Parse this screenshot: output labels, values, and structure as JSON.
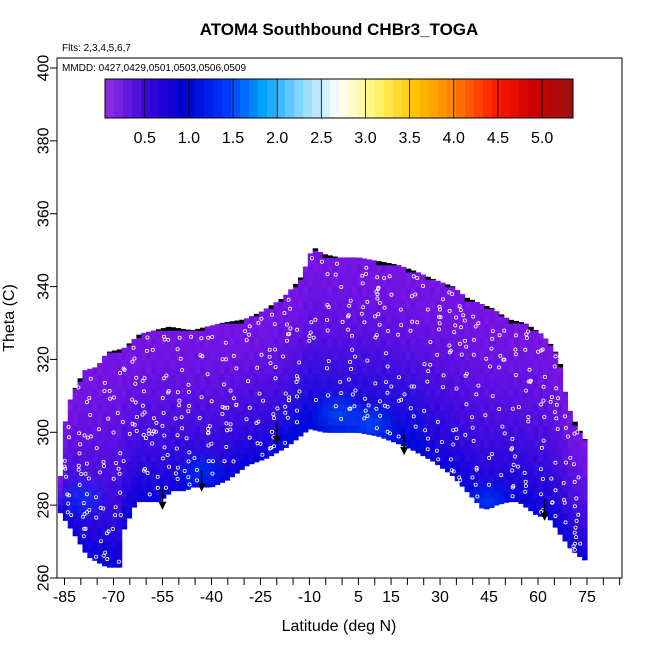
{
  "chart_data": {
    "type": "heatmap",
    "title": "ATOM4 Southbound CHBr3_TOGA",
    "flights_note": "Flts: 2,3,4,5,6,7",
    "dates_note": "MMDD: 0427,0429,0501,0503,0506,0509",
    "xlabel": "Latitude (deg N)",
    "ylabel": "Theta (C)",
    "xlim": [
      -88,
      87
    ],
    "ylim": [
      260,
      405
    ],
    "x_ticks": [
      -85,
      -70,
      -55,
      -40,
      -25,
      -10,
      5,
      15,
      30,
      45,
      60,
      75
    ],
    "x_minor_ticks": [
      -80,
      -75,
      -65,
      -60,
      -50,
      -45,
      -35,
      -30,
      -20,
      -15,
      -5,
      0,
      10,
      20,
      25,
      35,
      40,
      50,
      55,
      65,
      70,
      80,
      85
    ],
    "y_ticks": [
      260,
      280,
      300,
      320,
      340,
      360,
      380,
      400
    ],
    "colorbar": {
      "min": 0.05,
      "max": 5.35,
      "ticks": [
        0.5,
        1.0,
        1.5,
        2.0,
        2.5,
        3.0,
        3.5,
        4.0,
        4.5,
        5.0
      ],
      "tick_labels": [
        "0.5",
        "1.0",
        "1.5",
        "2.0",
        "2.5",
        "3.0",
        "3.5",
        "4.0",
        "4.5",
        "5.0"
      ],
      "colors": [
        "#8a2be2",
        "#3a05dc",
        "#0000cd",
        "#0033ff",
        "#00a0ff",
        "#88d8ff",
        "#ffffff",
        "#fff46a",
        "#ffc400",
        "#ff8000",
        "#ff2000",
        "#d00000",
        "#a01010"
      ]
    },
    "upper_boundary": [
      [
        -87,
        279
      ],
      [
        -86,
        291
      ],
      [
        -85,
        302
      ],
      [
        -83,
        310
      ],
      [
        -79,
        317
      ],
      [
        -75,
        318
      ],
      [
        -72,
        322
      ],
      [
        -67,
        323
      ],
      [
        -62,
        327
      ],
      [
        -53,
        329
      ],
      [
        -46,
        328
      ],
      [
        -37,
        330
      ],
      [
        -30,
        331
      ],
      [
        -25,
        333
      ],
      [
        -18,
        337
      ],
      [
        -13,
        342
      ],
      [
        -11,
        346
      ],
      [
        -9,
        351
      ],
      [
        -6,
        349
      ],
      [
        -1,
        348
      ],
      [
        5,
        348
      ],
      [
        11,
        347
      ],
      [
        17,
        346
      ],
      [
        23,
        344
      ],
      [
        28,
        342
      ],
      [
        34,
        340
      ],
      [
        38,
        337
      ],
      [
        46,
        334
      ],
      [
        51,
        331
      ],
      [
        56,
        330
      ],
      [
        61,
        327
      ],
      [
        64,
        324
      ],
      [
        66,
        321
      ],
      [
        67,
        318
      ],
      [
        68,
        312
      ],
      [
        70,
        305
      ],
      [
        73,
        300
      ],
      [
        75,
        297
      ],
      [
        75,
        280
      ],
      [
        74,
        265
      ]
    ],
    "lower_boundary": [
      [
        -87,
        279
      ],
      [
        -82,
        272
      ],
      [
        -78,
        266
      ],
      [
        -72,
        263
      ],
      [
        -68,
        263
      ],
      [
        -67,
        273
      ],
      [
        -63,
        281
      ],
      [
        -56,
        281
      ],
      [
        -52,
        284
      ],
      [
        -48,
        284
      ],
      [
        -46,
        285
      ],
      [
        -40,
        285
      ],
      [
        -35,
        287
      ],
      [
        -29,
        291
      ],
      [
        -23,
        293
      ],
      [
        -17,
        296
      ],
      [
        -10,
        301
      ],
      [
        -5,
        300
      ],
      [
        0,
        300
      ],
      [
        5,
        300
      ],
      [
        11,
        299
      ],
      [
        17,
        297
      ],
      [
        22,
        295
      ],
      [
        28,
        292
      ],
      [
        34,
        288
      ],
      [
        38,
        284
      ],
      [
        41,
        281
      ],
      [
        43,
        279
      ],
      [
        45,
        279
      ],
      [
        47,
        280
      ],
      [
        51,
        281
      ],
      [
        54,
        281
      ],
      [
        57,
        279
      ],
      [
        60,
        277
      ],
      [
        63,
        277
      ],
      [
        66,
        273
      ],
      [
        70,
        268
      ],
      [
        74,
        265
      ]
    ],
    "aircraft_arrows": [
      [
        -55,
        279
      ],
      [
        -43,
        284
      ],
      [
        -20,
        297
      ],
      [
        19,
        294
      ],
      [
        62,
        276
      ]
    ],
    "observations_marker": "open white circles",
    "legend": "colorbar top"
  }
}
